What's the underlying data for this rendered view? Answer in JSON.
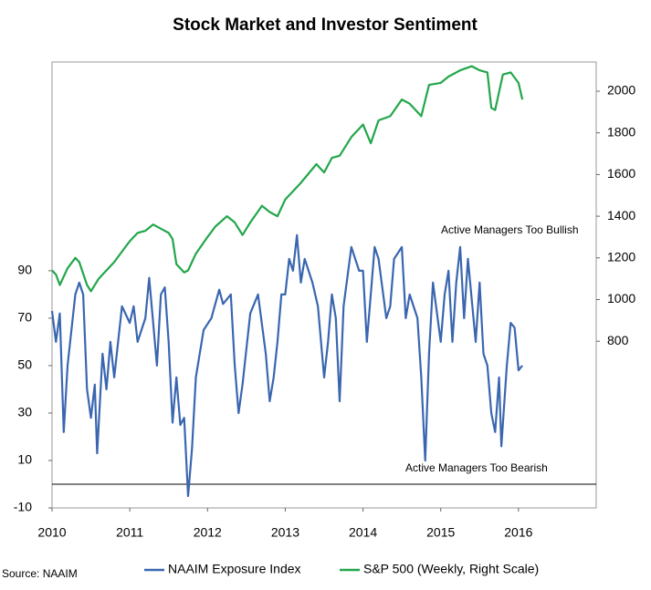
{
  "chart_data": {
    "type": "line",
    "title": "Stock Market and Investor Sentiment",
    "source": "Source: NAAIM",
    "annotations": [
      "Active Managers  Too Bullish",
      "Active Managers  Too Bearish"
    ],
    "xlim": [
      2010,
      2017
    ],
    "xticks": [
      2010,
      2011,
      2012,
      2013,
      2014,
      2015,
      2016
    ],
    "ylim": [
      -10,
      178
    ],
    "yticks": [
      -10,
      10,
      30,
      50,
      70,
      90
    ],
    "y2lim": [
      0,
      2140
    ],
    "y2ticks": [
      800,
      1000,
      1200,
      1400,
      1600,
      1800,
      2000
    ],
    "series": [
      {
        "name": "NAAIM Exposure Index",
        "color": "#3a66b0",
        "x": [
          2010.0,
          2010.05,
          2010.1,
          2010.15,
          2010.2,
          2010.3,
          2010.35,
          2010.4,
          2010.45,
          2010.5,
          2010.55,
          2010.58,
          2010.65,
          2010.7,
          2010.75,
          2010.8,
          2010.9,
          2011.0,
          2011.05,
          2011.1,
          2011.2,
          2011.25,
          2011.35,
          2011.4,
          2011.45,
          2011.5,
          2011.55,
          2011.6,
          2011.65,
          2011.7,
          2011.75,
          2011.8,
          2011.85,
          2011.95,
          2012.05,
          2012.15,
          2012.2,
          2012.3,
          2012.35,
          2012.4,
          2012.45,
          2012.55,
          2012.65,
          2012.75,
          2012.8,
          2012.85,
          2012.9,
          2012.95,
          2013.0,
          2013.05,
          2013.1,
          2013.15,
          2013.2,
          2013.25,
          2013.35,
          2013.42,
          2013.5,
          2013.55,
          2013.6,
          2013.65,
          2013.7,
          2013.75,
          2013.85,
          2013.95,
          2014.0,
          2014.05,
          2014.1,
          2014.15,
          2014.2,
          2014.3,
          2014.35,
          2014.4,
          2014.5,
          2014.55,
          2014.6,
          2014.7,
          2014.75,
          2014.8,
          2014.85,
          2014.9,
          2015.0,
          2015.05,
          2015.1,
          2015.15,
          2015.2,
          2015.25,
          2015.3,
          2015.35,
          2015.45,
          2015.5,
          2015.55,
          2015.6,
          2015.65,
          2015.7,
          2015.75,
          2015.78,
          2015.85,
          2015.9,
          2015.95,
          2016.0,
          2016.05
        ],
        "values": [
          73,
          60,
          72,
          22,
          50,
          80,
          85,
          80,
          40,
          28,
          42,
          13,
          55,
          40,
          60,
          45,
          75,
          68,
          75,
          60,
          70,
          87,
          50,
          80,
          83,
          60,
          26,
          45,
          25,
          28,
          -5,
          15,
          45,
          65,
          70,
          82,
          76,
          80,
          50,
          30,
          42,
          72,
          80,
          55,
          35,
          45,
          60,
          80,
          80,
          95,
          90,
          105,
          85,
          95,
          85,
          75,
          45,
          60,
          80,
          70,
          35,
          75,
          100,
          90,
          90,
          60,
          80,
          100,
          95,
          70,
          75,
          95,
          100,
          70,
          80,
          70,
          45,
          10,
          55,
          85,
          60,
          80,
          90,
          60,
          85,
          100,
          70,
          95,
          60,
          85,
          55,
          50,
          30,
          22,
          45,
          16,
          50,
          68,
          66,
          48,
          50
        ]
      },
      {
        "name": "S&P 500 (Weekly, Right Scale)",
        "color": "#22a64a",
        "axis": "y2",
        "x": [
          2010.0,
          2010.05,
          2010.1,
          2010.2,
          2010.3,
          2010.35,
          2010.45,
          2010.5,
          2010.6,
          2010.7,
          2010.8,
          2010.9,
          2011.0,
          2011.1,
          2011.2,
          2011.3,
          2011.4,
          2011.5,
          2011.55,
          2011.6,
          2011.7,
          2011.75,
          2011.85,
          2012.0,
          2012.1,
          2012.25,
          2012.35,
          2012.45,
          2012.55,
          2012.7,
          2012.8,
          2012.9,
          2013.0,
          2013.1,
          2013.2,
          2013.4,
          2013.5,
          2013.6,
          2013.7,
          2013.85,
          2014.0,
          2014.1,
          2014.2,
          2014.35,
          2014.5,
          2014.6,
          2014.75,
          2014.85,
          2015.0,
          2015.1,
          2015.25,
          2015.4,
          2015.5,
          2015.6,
          2015.65,
          2015.7,
          2015.8,
          2015.9,
          2016.0,
          2016.05
        ],
        "values": [
          1140,
          1120,
          1070,
          1150,
          1200,
          1180,
          1070,
          1040,
          1100,
          1140,
          1180,
          1230,
          1280,
          1320,
          1330,
          1360,
          1340,
          1320,
          1290,
          1170,
          1130,
          1140,
          1220,
          1300,
          1350,
          1400,
          1370,
          1310,
          1370,
          1450,
          1420,
          1400,
          1480,
          1520,
          1560,
          1650,
          1610,
          1680,
          1690,
          1780,
          1840,
          1750,
          1860,
          1880,
          1960,
          1940,
          1880,
          2030,
          2040,
          2070,
          2100,
          2120,
          2100,
          2090,
          1920,
          1910,
          2080,
          2090,
          2040,
          1960
        ]
      }
    ]
  }
}
